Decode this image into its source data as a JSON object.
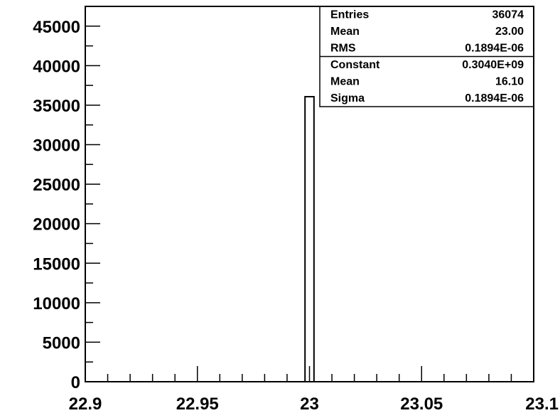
{
  "chart_data": {
    "type": "bar",
    "title": "",
    "xlabel": "",
    "ylabel": "",
    "xlim": [
      22.9,
      23.1
    ],
    "ylim": [
      0,
      47500
    ],
    "grid": false,
    "bins": [
      {
        "x_low": 22.998,
        "x_high": 23.002,
        "value": 36074
      }
    ],
    "x_ticks": [
      {
        "value": 22.9,
        "label": "22.9"
      },
      {
        "value": 22.95,
        "label": "22.95"
      },
      {
        "value": 23.0,
        "label": "23"
      },
      {
        "value": 23.05,
        "label": "23.05"
      },
      {
        "value": 23.1,
        "label": "23.1"
      }
    ],
    "y_ticks": [
      {
        "value": 0,
        "label": "0"
      },
      {
        "value": 5000,
        "label": "5000"
      },
      {
        "value": 10000,
        "label": "10000"
      },
      {
        "value": 15000,
        "label": "15000"
      },
      {
        "value": 20000,
        "label": "20000"
      },
      {
        "value": 25000,
        "label": "25000"
      },
      {
        "value": 30000,
        "label": "30000"
      },
      {
        "value": 35000,
        "label": "35000"
      },
      {
        "value": 40000,
        "label": "40000"
      },
      {
        "value": 45000,
        "label": "45000"
      }
    ],
    "stats_box": {
      "placement": "top-right",
      "sections": [
        [
          {
            "label": "Entries",
            "value": "36074"
          },
          {
            "label": "Mean",
            "value": "23.00"
          },
          {
            "label": "RMS",
            "value": "0.1894E-06"
          }
        ],
        [
          {
            "label": "Constant",
            "value": "0.3040E+09"
          },
          {
            "label": "Mean",
            "value": "16.10"
          },
          {
            "label": "Sigma",
            "value": "0.1894E-06"
          }
        ]
      ]
    }
  }
}
